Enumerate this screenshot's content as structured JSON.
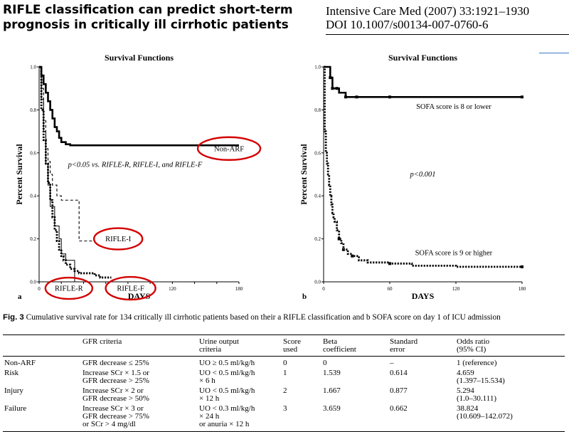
{
  "header": {
    "title": "RIFLE classification can predict short-term prognosis in critically ill cirrhotic patients",
    "citation_line1": "Intensive Care Med (2007) 33:1921–1930",
    "citation_line2": "DOI 10.1007/s00134-007-0760-6"
  },
  "chart_data": [
    {
      "type": "line",
      "panel_label": "a",
      "title": "Survival Functions",
      "xlabel": "DAYS",
      "ylabel": "Percent Survival",
      "xlim": [
        0,
        180
      ],
      "ylim": [
        0,
        1.0
      ],
      "x_ticks": [
        0,
        20,
        40,
        60,
        80,
        100,
        120,
        140,
        160,
        180
      ],
      "x_tick_labels": [
        "0",
        "",
        "",
        "",
        "",
        "",
        "120",
        "",
        "",
        "180"
      ],
      "y_ticks": [
        0.0,
        0.2,
        0.4,
        0.6,
        0.8,
        1.0
      ],
      "y_tick_labels": [
        "0.0",
        "0.2",
        "0.4",
        "0.6",
        "0.8",
        "1.0"
      ],
      "annotation": "p<0.05 vs. RIFLE-R, RIFLE-I, and RIFLE-F",
      "highlight_color": "#d40000",
      "series": [
        {
          "name": "Non-ARF",
          "style": "solid-thick",
          "x": [
            0,
            2,
            4,
            6,
            8,
            10,
            12,
            14,
            16,
            18,
            20,
            24,
            28,
            35,
            60,
            120,
            180
          ],
          "y": [
            1.0,
            0.96,
            0.92,
            0.88,
            0.84,
            0.8,
            0.76,
            0.72,
            0.7,
            0.67,
            0.65,
            0.64,
            0.635,
            0.635,
            0.635,
            0.635,
            0.635
          ]
        },
        {
          "name": "RIFLE-I",
          "style": "dashed",
          "x": [
            0,
            2,
            4,
            6,
            8,
            10,
            12,
            16,
            20,
            28,
            36,
            40,
            45,
            50
          ],
          "y": [
            1.0,
            0.9,
            0.75,
            0.62,
            0.56,
            0.5,
            0.45,
            0.4,
            0.38,
            0.38,
            0.19,
            0.19,
            0.19,
            0.19
          ]
        },
        {
          "name": "RIFLE-R",
          "style": "thin",
          "x": [
            0,
            2,
            4,
            6,
            8,
            10,
            14,
            18,
            20,
            24,
            30,
            32
          ],
          "y": [
            1.0,
            0.85,
            0.7,
            0.55,
            0.45,
            0.35,
            0.26,
            0.2,
            0.13,
            0.1,
            0.1,
            0.0
          ]
        },
        {
          "name": "RIFLE-F",
          "style": "dotted-thick",
          "x": [
            0,
            2,
            4,
            6,
            8,
            10,
            12,
            14,
            16,
            18,
            20,
            22,
            24,
            28,
            32,
            36,
            40,
            50,
            55,
            60,
            65
          ],
          "y": [
            1.0,
            0.8,
            0.66,
            0.55,
            0.46,
            0.38,
            0.3,
            0.24,
            0.19,
            0.15,
            0.12,
            0.1,
            0.08,
            0.06,
            0.05,
            0.04,
            0.04,
            0.03,
            0.02,
            0.02,
            0.02
          ]
        }
      ],
      "highlights": [
        {
          "label": "Non-ARF",
          "x": 148,
          "y": 0.62
        },
        {
          "label": "RIFLE-I",
          "x": 52,
          "y": 0.2
        },
        {
          "label": "RIFLE-R",
          "x": 14,
          "y": -0.03
        },
        {
          "label": "RIFLE-F",
          "x": 67,
          "y": -0.03
        }
      ]
    },
    {
      "type": "line",
      "panel_label": "b",
      "title": "Survival Functions",
      "xlabel": "DAYS",
      "ylabel": "Percent Survival",
      "xlim": [
        0,
        180
      ],
      "ylim": [
        0,
        1.0
      ],
      "x_ticks": [
        0,
        60,
        120,
        180
      ],
      "x_tick_labels": [
        "0",
        "60",
        "120",
        "180"
      ],
      "y_ticks": [
        0.0,
        0.2,
        0.4,
        0.6,
        0.8,
        1.0
      ],
      "y_tick_labels": [
        "0.0",
        "0.2",
        "0.4",
        "0.6",
        "0.8",
        "1.0"
      ],
      "annotation": "p<0.001",
      "series": [
        {
          "name": "SOFA score is 8 or lower",
          "style": "solid-thick",
          "x": [
            0,
            4,
            6,
            8,
            12,
            14,
            20,
            30,
            60,
            120,
            180
          ],
          "y": [
            1.0,
            1.0,
            0.95,
            0.9,
            0.9,
            0.88,
            0.86,
            0.86,
            0.86,
            0.86,
            0.86
          ]
        },
        {
          "name": "SOFA score is 9 or higher",
          "style": "dotted-thick",
          "x": [
            0,
            1,
            2,
            3,
            4,
            5,
            6,
            7,
            8,
            9,
            10,
            12,
            14,
            16,
            18,
            22,
            26,
            32,
            40,
            60,
            80,
            120,
            180
          ],
          "y": [
            1.0,
            0.7,
            0.6,
            0.55,
            0.5,
            0.45,
            0.4,
            0.36,
            0.32,
            0.3,
            0.28,
            0.24,
            0.2,
            0.18,
            0.15,
            0.13,
            0.12,
            0.1,
            0.09,
            0.085,
            0.075,
            0.07,
            0.07
          ]
        }
      ],
      "markers": [
        {
          "series": 0,
          "x": [
            6,
            8,
            12,
            20,
            30,
            60,
            180
          ]
        },
        {
          "series": 1,
          "x": [
            14,
            18,
            26,
            60,
            180
          ]
        }
      ]
    }
  ],
  "caption": {
    "fig_label": "Fig. 3",
    "text": "Cumulative survival rate for 134 critically ill cirrhotic patients based on their a RIFLE classification and b SOFA score on day 1 of ICU admission"
  },
  "table": {
    "columns": [
      [
        ""
      ],
      [
        "GFR criteria"
      ],
      [
        "Urine output",
        "criteria"
      ],
      [
        "Score",
        "used"
      ],
      [
        "Beta",
        "coefficient"
      ],
      [
        "Standard",
        "error"
      ],
      [
        "Odds ratio",
        "(95% CI)"
      ]
    ],
    "rows": [
      [
        [
          "Non-ARF"
        ],
        [
          "GFR decrease ≤ 25%"
        ],
        [
          "UO ≥ 0.5 ml/kg/h"
        ],
        [
          "0"
        ],
        [
          "0"
        ],
        [
          "–"
        ],
        [
          "1 (reference)"
        ]
      ],
      [
        [
          "Risk"
        ],
        [
          "Increase SCr × 1.5 or",
          "GFR decrease > 25%"
        ],
        [
          "UO < 0.5  ml/kg/h",
          "× 6 h"
        ],
        [
          "1"
        ],
        [
          "1.539"
        ],
        [
          "0.614"
        ],
        [
          "4.659",
          "(1.397–15.534)"
        ]
      ],
      [
        [
          "Injury"
        ],
        [
          "Increase SCr × 2 or",
          "GFR decrease > 50%"
        ],
        [
          "UO < 0.5  ml/kg/h",
          "× 12 h"
        ],
        [
          "2"
        ],
        [
          "1.667"
        ],
        [
          "0.877"
        ],
        [
          "5.294",
          "(1.0–30.111)"
        ]
      ],
      [
        [
          "Failure"
        ],
        [
          "Increase SCr × 3 or",
          "GFR decrease > 75%",
          "or SCr > 4 mg/dl"
        ],
        [
          "UO < 0.3 ml/kg/h",
          "× 24 h",
          "or anuria × 12 h"
        ],
        [
          "3"
        ],
        [
          "3.659"
        ],
        [
          "0.662"
        ],
        [
          "38.824",
          "(10.609–142.072)"
        ]
      ]
    ]
  }
}
